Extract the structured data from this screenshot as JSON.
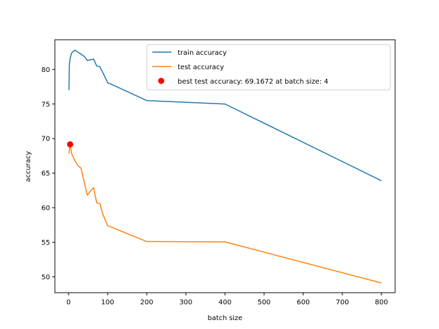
{
  "chart_data": {
    "type": "line",
    "title": "",
    "xlabel": "batch size",
    "ylabel": "accuracy",
    "xlim": [
      -35,
      835
    ],
    "ylim": [
      47.7,
      84.3
    ],
    "xticks": [
      0,
      100,
      200,
      300,
      400,
      500,
      600,
      700,
      800
    ],
    "yticks": [
      50,
      55,
      60,
      65,
      70,
      75,
      80
    ],
    "grid": false,
    "legend_position": "top-right",
    "series": [
      {
        "name": "train accuracy",
        "color": "#1f77b4",
        "x": [
          1,
          2,
          4,
          8,
          16,
          24,
          32,
          40,
          48,
          56,
          64,
          72,
          80,
          88,
          100,
          200,
          400,
          800
        ],
        "y": [
          77.0,
          80.6,
          81.6,
          82.4,
          82.8,
          82.5,
          82.2,
          81.9,
          81.3,
          81.4,
          81.5,
          80.5,
          80.4,
          79.5,
          78.1,
          75.5,
          75.0,
          63.9
        ]
      },
      {
        "name": "test accuracy",
        "color": "#ff7f0e",
        "x": [
          1,
          2,
          4,
          8,
          16,
          24,
          32,
          40,
          48,
          56,
          64,
          72,
          80,
          88,
          100,
          200,
          400,
          800
        ],
        "y": [
          67.8,
          68.3,
          69.1672,
          67.8,
          66.8,
          66.1,
          65.7,
          63.7,
          61.8,
          62.4,
          62.9,
          60.7,
          60.6,
          59.0,
          57.4,
          55.1,
          55.05,
          49.1
        ]
      }
    ],
    "markers": [
      {
        "name": "best test accuracy: 69.1672 at batch size: 4",
        "color": "#ff0000",
        "x": 4,
        "y": 69.1672
      }
    ]
  }
}
